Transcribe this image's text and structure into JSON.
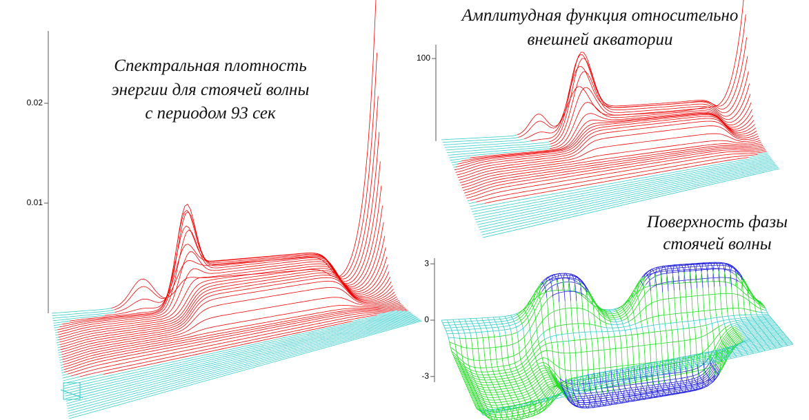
{
  "chart_data": [
    {
      "type": "surface",
      "title": [
        "Спектральная плотность",
        "энергии для стоячей волны",
        "с периодом 93 сек"
      ],
      "zlim": [
        0,
        0.028
      ],
      "zticks": [
        0.01,
        0.02
      ]
    },
    {
      "type": "surface",
      "title": [
        "Амплитудная функция относительно",
        "внешней акватории"
      ],
      "zlim": [
        0,
        115
      ],
      "zticks": [
        100
      ]
    },
    {
      "type": "surface",
      "title": [
        "Поверхность фазы",
        "стоячей волны"
      ],
      "zlim": [
        -3.3,
        3.3
      ],
      "zticks": [
        -3,
        0,
        3
      ]
    }
  ]
}
